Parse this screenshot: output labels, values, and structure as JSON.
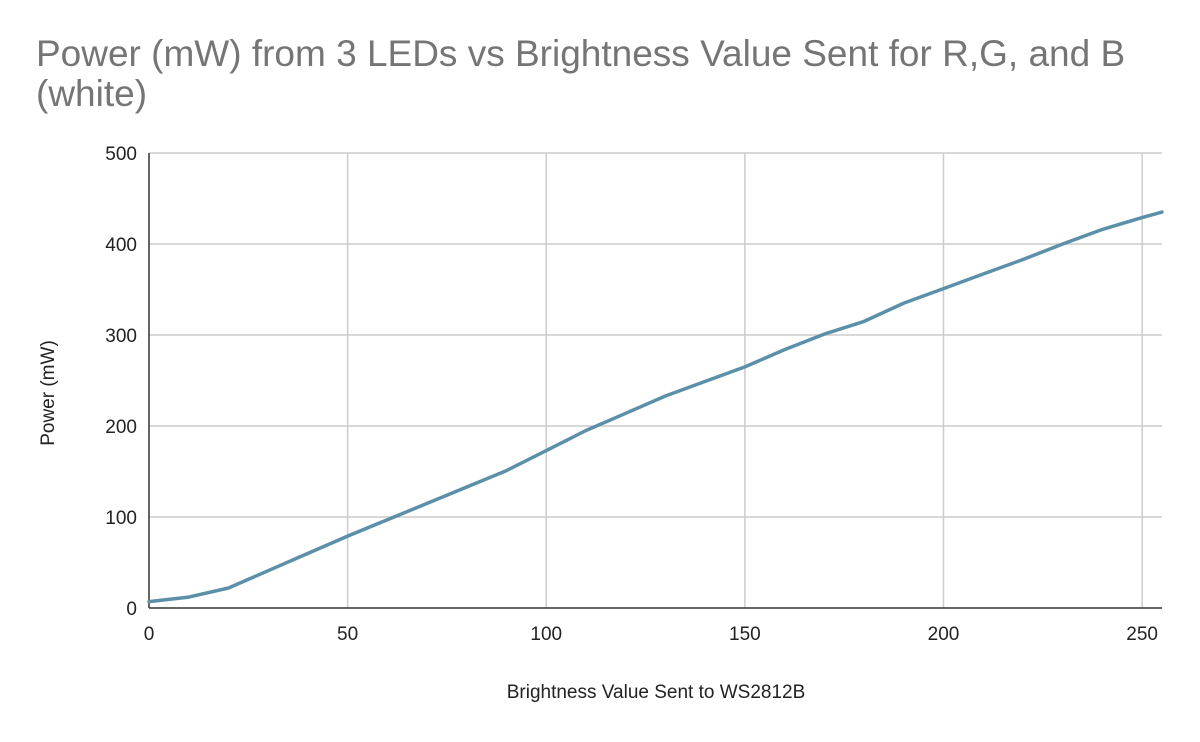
{
  "chart_data": {
    "type": "line",
    "title": "Power (mW) from 3 LEDs vs Brightness Value Sent for R,G, and B (white)",
    "xlabel": "Brightness Value Sent to WS2812B",
    "ylabel": "Power (mW)",
    "xlim": [
      0,
      255
    ],
    "ylim": [
      0,
      500
    ],
    "x_ticks": [
      0,
      50,
      100,
      150,
      200,
      250
    ],
    "y_ticks": [
      0,
      100,
      200,
      300,
      400,
      500
    ],
    "grid": true,
    "legend": "none",
    "series": [
      {
        "color": "#5b90a8",
        "x": [
          0,
          10,
          20,
          30,
          40,
          50,
          60,
          70,
          80,
          90,
          100,
          110,
          120,
          130,
          140,
          150,
          160,
          170,
          180,
          190,
          200,
          210,
          220,
          230,
          240,
          250,
          255
        ],
        "y": [
          7,
          12,
          22,
          41,
          60,
          79,
          97,
          115,
          133,
          151,
          173,
          195,
          214,
          233,
          249,
          265,
          284,
          301,
          315,
          335,
          351,
          367,
          383,
          400,
          416,
          429,
          435
        ]
      }
    ]
  }
}
